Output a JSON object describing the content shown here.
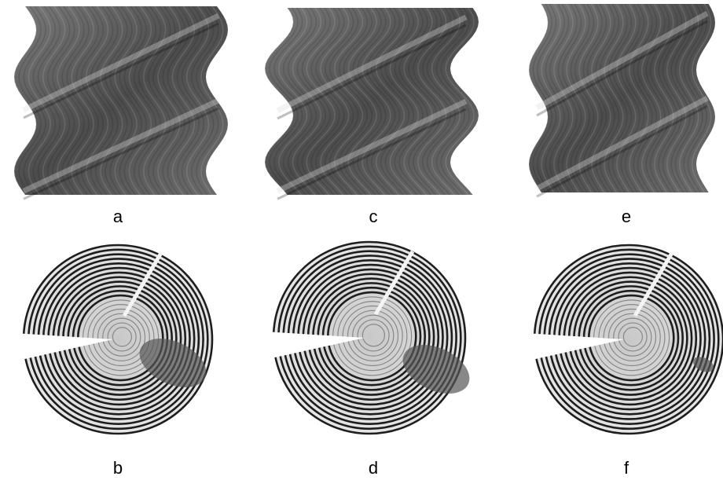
{
  "panels": [
    {
      "label": "a"
    },
    {
      "label": "c"
    },
    {
      "label": "e"
    },
    {
      "label": "b"
    },
    {
      "label": "d"
    },
    {
      "label": "f"
    }
  ]
}
